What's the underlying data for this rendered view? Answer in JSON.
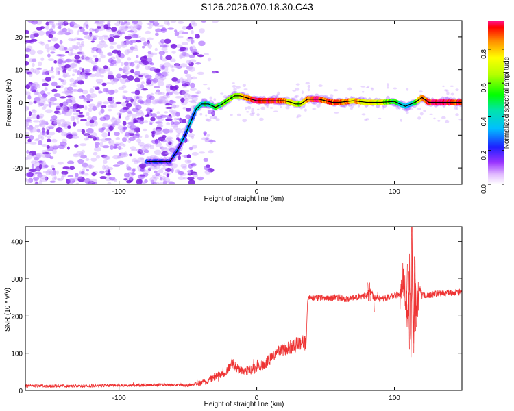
{
  "title": "S126.2026.070.18.30.C43",
  "chart_data": [
    {
      "type": "heatmap",
      "name": "spectrogram",
      "xlabel": "Height of straight line (km)",
      "ylabel": "Frequency (Hz)",
      "xlim": [
        -168,
        149
      ],
      "ylim": [
        -25,
        25
      ],
      "xticks": [
        -100,
        0,
        100
      ],
      "xtick_labels": [
        "-100",
        "0",
        "100"
      ],
      "yticks": [
        20,
        10,
        0,
        -10,
        -20
      ],
      "ytick_labels": [
        "20",
        "10",
        "0",
        "-10",
        "-20"
      ],
      "noise_region_x": [
        -168,
        -45
      ],
      "noise_color": "#8a2be2",
      "line_color": "#000000",
      "ridge_path": {
        "x": [
          -80,
          -63,
          -58,
          -52,
          -47,
          -44,
          -40,
          -35,
          -30,
          -25,
          -20,
          -16,
          -12,
          -8,
          -4,
          0,
          10,
          20,
          25,
          28,
          32,
          37,
          45,
          50,
          55,
          60,
          70,
          80,
          90,
          100,
          104,
          108,
          112,
          115,
          120,
          125,
          149
        ],
        "y": [
          -18,
          -18,
          -15,
          -10,
          -5,
          -2,
          -0.5,
          -0.5,
          -1.5,
          -0.5,
          1,
          2,
          2,
          1.5,
          1,
          0.5,
          0.5,
          0.5,
          0,
          -0.5,
          -0.5,
          1,
          1,
          0.5,
          0,
          0,
          0.5,
          0,
          0,
          0.3,
          -0.5,
          -1.2,
          -0.5,
          0,
          1.5,
          0,
          0
        ]
      },
      "ridge_amplitude": {
        "x": [
          -80,
          -63,
          -55,
          -45,
          -35,
          -25,
          -15,
          -5,
          0,
          10,
          20,
          30,
          40,
          50,
          60,
          70,
          80,
          90,
          100,
          110,
          120,
          130,
          149
        ],
        "a": [
          0.18,
          0.16,
          0.25,
          0.35,
          0.45,
          0.55,
          0.65,
          0.9,
          0.95,
          0.95,
          0.85,
          0.6,
          0.95,
          0.85,
          0.9,
          0.8,
          0.75,
          0.7,
          0.5,
          0.3,
          0.85,
          0.95,
          0.9
        ]
      },
      "colorbar": {
        "label": "Normalized spectral amplitude",
        "range": [
          0,
          0.97
        ],
        "ticks": [
          0.0,
          0.2,
          0.4,
          0.6,
          0.8
        ],
        "tick_labels": [
          "0.0",
          "0.2",
          "0.4",
          "0.6",
          "0.8"
        ],
        "stops": [
          {
            "v": 0.0,
            "c": "#ffffff"
          },
          {
            "v": 0.06,
            "c": "#e0b8ff"
          },
          {
            "v": 0.13,
            "c": "#9933ff"
          },
          {
            "v": 0.22,
            "c": "#1e1eff"
          },
          {
            "v": 0.33,
            "c": "#00bfff"
          },
          {
            "v": 0.44,
            "c": "#00e5aa"
          },
          {
            "v": 0.53,
            "c": "#00ff00"
          },
          {
            "v": 0.65,
            "c": "#b5ff00"
          },
          {
            "v": 0.75,
            "c": "#ffff00"
          },
          {
            "v": 0.85,
            "c": "#ff8c00"
          },
          {
            "v": 0.93,
            "c": "#ff0000"
          },
          {
            "v": 0.97,
            "c": "#ff1493"
          }
        ]
      }
    },
    {
      "type": "line",
      "name": "snr",
      "xlabel": "Height of straight line (km)",
      "ylabel": "SNR (10 * v/v)",
      "xlim": [
        -168,
        149
      ],
      "ylim": [
        0,
        440
      ],
      "xticks": [
        -100,
        0,
        100
      ],
      "xtick_labels": [
        "-100",
        "0",
        "100"
      ],
      "yticks": [
        0,
        100,
        200,
        300,
        400
      ],
      "ytick_labels": [
        "0",
        "100",
        "200",
        "300",
        "400"
      ],
      "color": "#ee3333",
      "series": [
        {
          "name": "SNR",
          "x": [
            -168,
            -150,
            -130,
            -110,
            -90,
            -70,
            -55,
            -50,
            -45,
            -40,
            -35,
            -30,
            -25,
            -22,
            -20,
            -17,
            -15,
            -12,
            -10,
            -5,
            0,
            5,
            10,
            15,
            20,
            25,
            30,
            34,
            36,
            37,
            40,
            50,
            60,
            65,
            70,
            80,
            82,
            85,
            90,
            95,
            100,
            104,
            106,
            108,
            110,
            111,
            112,
            113,
            114,
            115,
            116,
            118,
            120,
            125,
            130,
            140,
            149
          ],
          "y": [
            12,
            12,
            12,
            13,
            14,
            15,
            15,
            14,
            16,
            20,
            28,
            38,
            45,
            50,
            65,
            75,
            62,
            55,
            50,
            55,
            62,
            70,
            85,
            100,
            110,
            118,
            125,
            128,
            130,
            245,
            250,
            248,
            250,
            245,
            250,
            255,
            270,
            250,
            245,
            250,
            255,
            260,
            300,
            260,
            180,
            330,
            100,
            400,
            150,
            320,
            200,
            280,
            255,
            255,
            260,
            262,
            265
          ]
        }
      ]
    }
  ]
}
